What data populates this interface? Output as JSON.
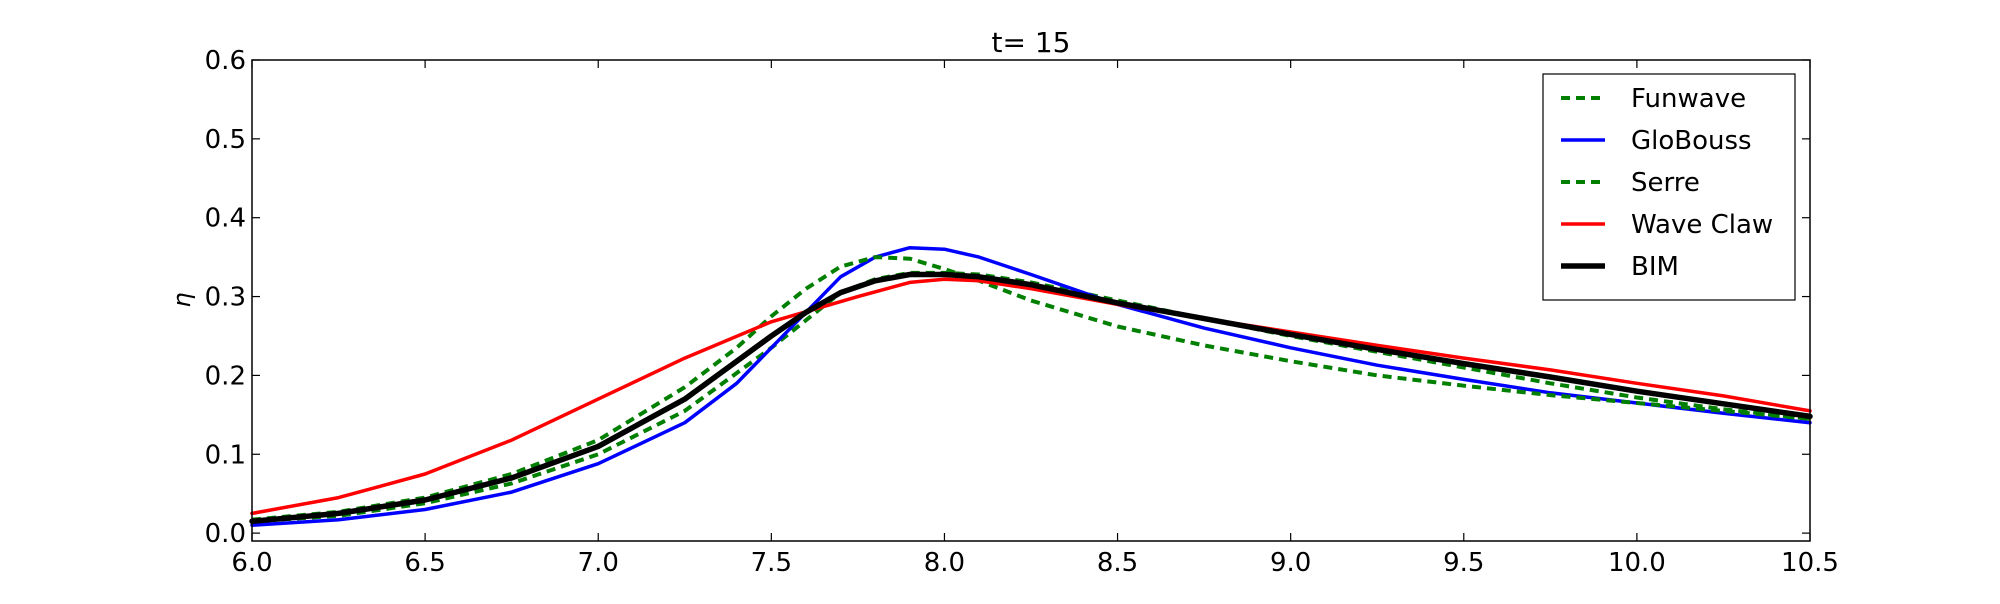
{
  "chart_data": {
    "type": "line",
    "title": "t= 15",
    "xlabel": "",
    "ylabel": "η",
    "xlim": [
      6.0,
      10.5
    ],
    "ylim": [
      -0.01,
      0.6
    ],
    "x_ticks": [
      "6.0",
      "6.5",
      "7.0",
      "7.5",
      "8.0",
      "8.5",
      "9.0",
      "9.5",
      "10.0",
      "10.5"
    ],
    "y_ticks": [
      "0.0",
      "0.1",
      "0.2",
      "0.3",
      "0.4",
      "0.5",
      "0.6"
    ],
    "grid": false,
    "legend_position": "top-right",
    "series": [
      {
        "name": "Funwave",
        "color": "#007f00",
        "style": "dashed",
        "points": [
          [
            6.0,
            0.015
          ],
          [
            6.25,
            0.022
          ],
          [
            6.5,
            0.038
          ],
          [
            6.75,
            0.063
          ],
          [
            7.0,
            0.1
          ],
          [
            7.25,
            0.155
          ],
          [
            7.5,
            0.235
          ],
          [
            7.6,
            0.27
          ],
          [
            7.7,
            0.305
          ],
          [
            7.8,
            0.322
          ],
          [
            7.9,
            0.33
          ],
          [
            8.0,
            0.33
          ],
          [
            8.1,
            0.328
          ],
          [
            8.25,
            0.318
          ],
          [
            8.5,
            0.295
          ],
          [
            8.75,
            0.272
          ],
          [
            9.0,
            0.25
          ],
          [
            9.25,
            0.23
          ],
          [
            9.5,
            0.21
          ],
          [
            9.75,
            0.19
          ],
          [
            10.0,
            0.172
          ],
          [
            10.25,
            0.157
          ],
          [
            10.5,
            0.145
          ]
        ]
      },
      {
        "name": "GloBouss",
        "color": "#0000ff",
        "style": "solid",
        "points": [
          [
            6.0,
            0.01
          ],
          [
            6.25,
            0.017
          ],
          [
            6.5,
            0.03
          ],
          [
            6.75,
            0.052
          ],
          [
            7.0,
            0.088
          ],
          [
            7.25,
            0.14
          ],
          [
            7.4,
            0.19
          ],
          [
            7.5,
            0.235
          ],
          [
            7.6,
            0.28
          ],
          [
            7.7,
            0.325
          ],
          [
            7.8,
            0.35
          ],
          [
            7.9,
            0.362
          ],
          [
            8.0,
            0.36
          ],
          [
            8.1,
            0.35
          ],
          [
            8.25,
            0.328
          ],
          [
            8.5,
            0.29
          ],
          [
            8.75,
            0.26
          ],
          [
            9.0,
            0.235
          ],
          [
            9.25,
            0.213
          ],
          [
            9.5,
            0.195
          ],
          [
            9.75,
            0.178
          ],
          [
            10.0,
            0.165
          ],
          [
            10.25,
            0.152
          ],
          [
            10.5,
            0.14
          ]
        ]
      },
      {
        "name": "Serre",
        "color": "#007f00",
        "style": "dashed",
        "points": [
          [
            6.0,
            0.017
          ],
          [
            6.25,
            0.027
          ],
          [
            6.5,
            0.045
          ],
          [
            6.75,
            0.075
          ],
          [
            7.0,
            0.118
          ],
          [
            7.25,
            0.185
          ],
          [
            7.4,
            0.235
          ],
          [
            7.5,
            0.275
          ],
          [
            7.6,
            0.31
          ],
          [
            7.7,
            0.338
          ],
          [
            7.8,
            0.35
          ],
          [
            7.9,
            0.348
          ],
          [
            8.0,
            0.335
          ],
          [
            8.1,
            0.32
          ],
          [
            8.25,
            0.295
          ],
          [
            8.5,
            0.262
          ],
          [
            8.75,
            0.238
          ],
          [
            9.0,
            0.218
          ],
          [
            9.25,
            0.2
          ],
          [
            9.5,
            0.187
          ],
          [
            9.75,
            0.175
          ],
          [
            10.0,
            0.165
          ],
          [
            10.25,
            0.155
          ],
          [
            10.5,
            0.145
          ]
        ]
      },
      {
        "name": "Wave Claw",
        "color": "#ff0000",
        "style": "solid",
        "points": [
          [
            6.0,
            0.025
          ],
          [
            6.25,
            0.045
          ],
          [
            6.5,
            0.075
          ],
          [
            6.75,
            0.118
          ],
          [
            7.0,
            0.17
          ],
          [
            7.25,
            0.222
          ],
          [
            7.5,
            0.268
          ],
          [
            7.75,
            0.3
          ],
          [
            7.9,
            0.318
          ],
          [
            8.0,
            0.322
          ],
          [
            8.1,
            0.32
          ],
          [
            8.25,
            0.31
          ],
          [
            8.5,
            0.29
          ],
          [
            8.75,
            0.272
          ],
          [
            9.0,
            0.255
          ],
          [
            9.25,
            0.238
          ],
          [
            9.5,
            0.222
          ],
          [
            9.75,
            0.207
          ],
          [
            10.0,
            0.19
          ],
          [
            10.25,
            0.174
          ],
          [
            10.5,
            0.155
          ]
        ]
      },
      {
        "name": "BIM",
        "color": "#000000",
        "style": "thick",
        "points": [
          [
            6.0,
            0.015
          ],
          [
            6.25,
            0.025
          ],
          [
            6.5,
            0.042
          ],
          [
            6.75,
            0.07
          ],
          [
            7.0,
            0.11
          ],
          [
            7.25,
            0.17
          ],
          [
            7.5,
            0.25
          ],
          [
            7.6,
            0.28
          ],
          [
            7.7,
            0.305
          ],
          [
            7.8,
            0.32
          ],
          [
            7.9,
            0.328
          ],
          [
            8.0,
            0.328
          ],
          [
            8.1,
            0.325
          ],
          [
            8.25,
            0.315
          ],
          [
            8.5,
            0.292
          ],
          [
            8.75,
            0.272
          ],
          [
            9.0,
            0.252
          ],
          [
            9.25,
            0.233
          ],
          [
            9.5,
            0.215
          ],
          [
            9.75,
            0.198
          ],
          [
            10.0,
            0.18
          ],
          [
            10.25,
            0.164
          ],
          [
            10.5,
            0.148
          ]
        ]
      }
    ]
  }
}
